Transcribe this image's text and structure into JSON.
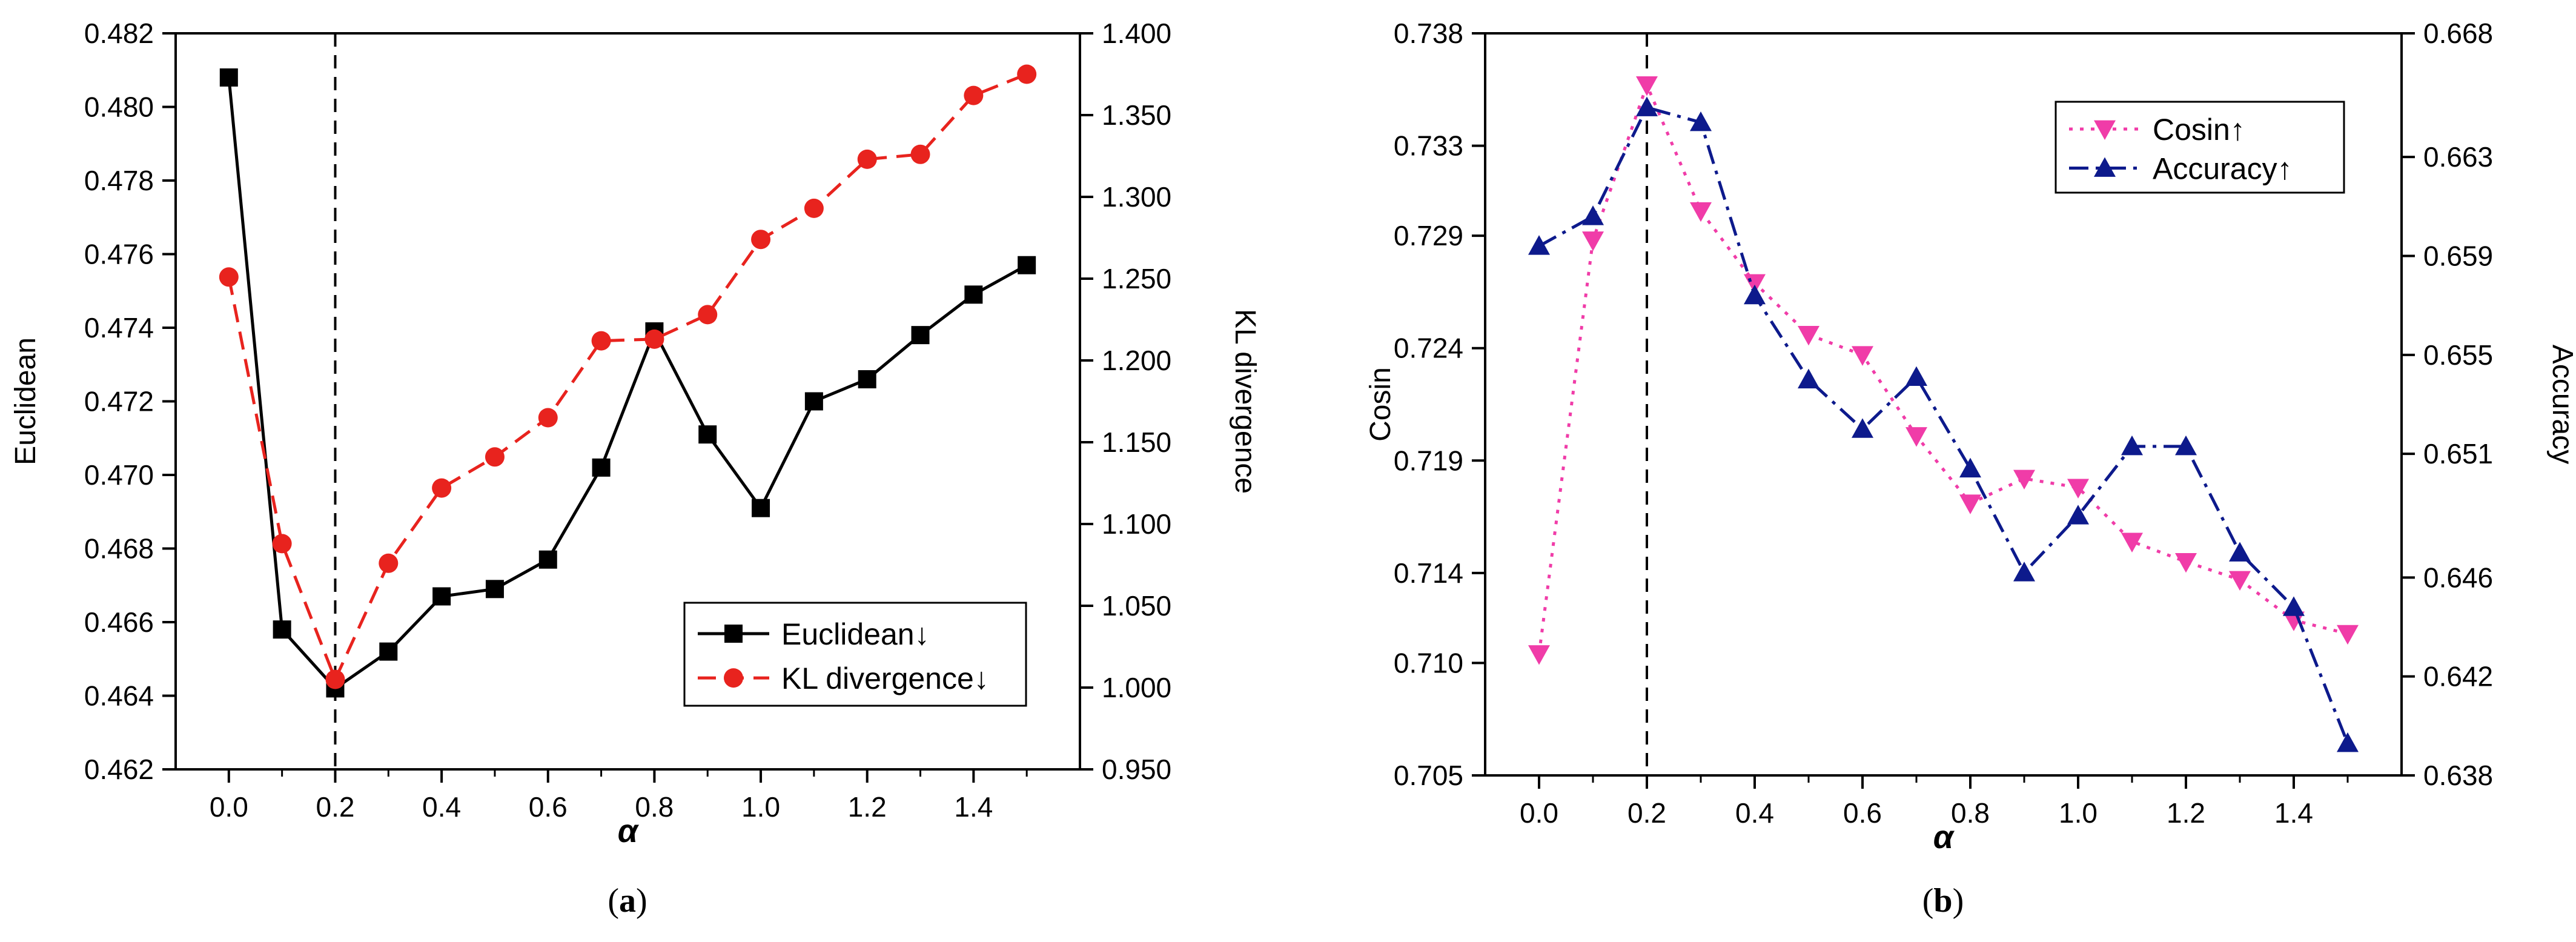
{
  "chart_data": [
    {
      "type": "line",
      "panel_label": "(a)",
      "panel_letter": "a",
      "xlabel": "α",
      "ylabel_left": "Euclidean",
      "ylabel_right": "KL divergence",
      "xlim": [
        -0.1,
        1.6
      ],
      "ylim_left": [
        0.462,
        0.482
      ],
      "ylim_right": [
        0.95,
        1.4
      ],
      "x_ticks": [
        "0.0",
        "0.2",
        "0.4",
        "0.6",
        "0.8",
        "1.0",
        "1.2",
        "1.4"
      ],
      "y_left_ticks": [
        "0.462",
        "0.464",
        "0.466",
        "0.468",
        "0.470",
        "0.472",
        "0.474",
        "0.476",
        "0.478",
        "0.480",
        "0.482"
      ],
      "y_right_ticks": [
        "0.950",
        "1.000",
        "1.050",
        "1.100",
        "1.150",
        "1.200",
        "1.250",
        "1.300",
        "1.350",
        "1.400"
      ],
      "vline_x": 0.2,
      "legend_position": "lower-right",
      "x": [
        0.0,
        0.1,
        0.2,
        0.3,
        0.4,
        0.5,
        0.6,
        0.7,
        0.8,
        0.9,
        1.0,
        1.1,
        1.2,
        1.3,
        1.4,
        1.5
      ],
      "series": [
        {
          "name": "Euclidean↓",
          "axis": "left",
          "color": "#000000",
          "marker": "square",
          "dash": "solid",
          "values": [
            0.4808,
            0.4658,
            0.4642,
            0.4652,
            0.4667,
            0.4669,
            0.4677,
            0.4702,
            0.4739,
            0.4711,
            0.4691,
            0.472,
            0.4726,
            0.4738,
            0.4749,
            0.4757
          ]
        },
        {
          "name": "KL divergence↓",
          "axis": "right",
          "color": "#e8231e",
          "marker": "circle",
          "dash": "dashed",
          "values": [
            1.251,
            1.088,
            1.005,
            1.076,
            1.122,
            1.141,
            1.165,
            1.212,
            1.213,
            1.228,
            1.274,
            1.293,
            1.323,
            1.326,
            1.362,
            1.375
          ]
        }
      ]
    },
    {
      "type": "line",
      "panel_label": "(b)",
      "panel_letter": "b",
      "xlabel": "α",
      "ylabel_left": "Cosin",
      "ylabel_right": "Accuracy",
      "xlim": [
        -0.1,
        1.6
      ],
      "ylim_left": [
        0.705,
        0.738
      ],
      "ylim_right": [
        0.638,
        0.668
      ],
      "y_left_tick_values": [
        0.705,
        0.71,
        0.714,
        0.719,
        0.724,
        0.729,
        0.733,
        0.738
      ],
      "y_right_tick_values": [
        0.638,
        0.642,
        0.646,
        0.651,
        0.655,
        0.659,
        0.663,
        0.668
      ],
      "x_ticks": [
        "0.0",
        "0.2",
        "0.4",
        "0.6",
        "0.8",
        "1.0",
        "1.2",
        "1.4"
      ],
      "y_left_ticks": [
        "0.705",
        "0.710",
        "0.714",
        "0.719",
        "0.724",
        "0.729",
        "0.733",
        "0.738"
      ],
      "y_right_ticks": [
        "0.638",
        "0.642",
        "0.646",
        "0.651",
        "0.655",
        "0.659",
        "0.663",
        "0.668"
      ],
      "vline_x": 0.2,
      "legend_position": "top-right",
      "x": [
        0.0,
        0.1,
        0.2,
        0.3,
        0.4,
        0.5,
        0.6,
        0.7,
        0.8,
        0.9,
        1.0,
        1.1,
        1.2,
        1.3,
        1.4,
        1.5
      ],
      "series": [
        {
          "name": "Cosin↑",
          "axis": "left",
          "color": "#f03ca8",
          "marker": "triangle-down",
          "dash": "dotted",
          "values": [
            0.7104,
            0.7288,
            0.7357,
            0.7301,
            0.7269,
            0.7246,
            0.7237,
            0.7201,
            0.7171,
            0.7182,
            0.7178,
            0.7154,
            0.7145,
            0.7137,
            0.7119,
            0.7113
          ]
        },
        {
          "name": "Accuracy↑",
          "axis": "right",
          "color": "#0d1a8c",
          "marker": "triangle-up",
          "dash": "dashdot",
          "values": [
            0.6594,
            0.6606,
            0.665,
            0.6644,
            0.6574,
            0.654,
            0.652,
            0.6541,
            0.6504,
            0.6462,
            0.6485,
            0.6513,
            0.6513,
            0.647,
            0.6448,
            0.6393
          ]
        }
      ]
    }
  ]
}
